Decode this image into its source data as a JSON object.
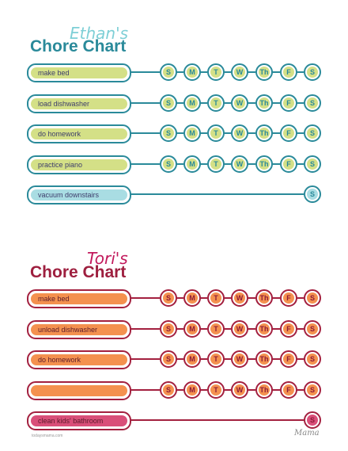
{
  "charts": [
    {
      "name": "Ethan's",
      "title": "Chore Chart",
      "colors": {
        "name": "#7ecfd6",
        "title": "#2a8a9a",
        "border": "#2a8a9a",
        "pill_fill": "#d4e087",
        "pill_alt_fill": "#a9dde3",
        "day_fill": "#d4e087",
        "day_alt_fill": "#a9dde3",
        "label_color": "#3d3d6b",
        "day_text": "#2a8a9a"
      },
      "chores": [
        {
          "label": "make bed",
          "days": [
            "S",
            "M",
            "T",
            "W",
            "Th",
            "F",
            "S"
          ]
        },
        {
          "label": "load dishwasher",
          "days": [
            "S",
            "M",
            "T",
            "W",
            "Th",
            "F",
            "S"
          ]
        },
        {
          "label": "do homework",
          "days": [
            "S",
            "M",
            "T",
            "W",
            "Th",
            "F",
            "S"
          ]
        },
        {
          "label": "practice piano",
          "days": [
            "S",
            "M",
            "T",
            "W",
            "Th",
            "F",
            "S"
          ]
        },
        {
          "label": "vacuum downstairs",
          "days": [
            "S"
          ],
          "alt": true
        }
      ]
    },
    {
      "name": "Tori's",
      "title": "Chore Chart",
      "colors": {
        "name": "#c2185b",
        "title": "#9e1f3f",
        "border": "#a3203f",
        "pill_fill": "#f4914f",
        "pill_alt_fill": "#d94f79",
        "day_fill": "#f4914f",
        "day_alt_fill": "#d94f79",
        "label_color": "#5a1a2a",
        "day_text": "#8e1b3a"
      },
      "chores": [
        {
          "label": "make bed",
          "days": [
            "S",
            "M",
            "T",
            "W",
            "Th",
            "F",
            "S"
          ]
        },
        {
          "label": "unload dishwasher",
          "days": [
            "S",
            "M",
            "T",
            "W",
            "Th",
            "F",
            "S"
          ]
        },
        {
          "label": "do homework",
          "days": [
            "S",
            "M",
            "T",
            "W",
            "Th",
            "F",
            "S"
          ]
        },
        {
          "label": "",
          "days": [
            "S",
            "M",
            "T",
            "W",
            "Th",
            "F",
            "S"
          ]
        },
        {
          "label": "clean kids' bathroom",
          "days": [
            "S"
          ],
          "alt": true
        }
      ]
    }
  ],
  "footer": {
    "left": "todaysmama.com",
    "right": "Mama"
  }
}
